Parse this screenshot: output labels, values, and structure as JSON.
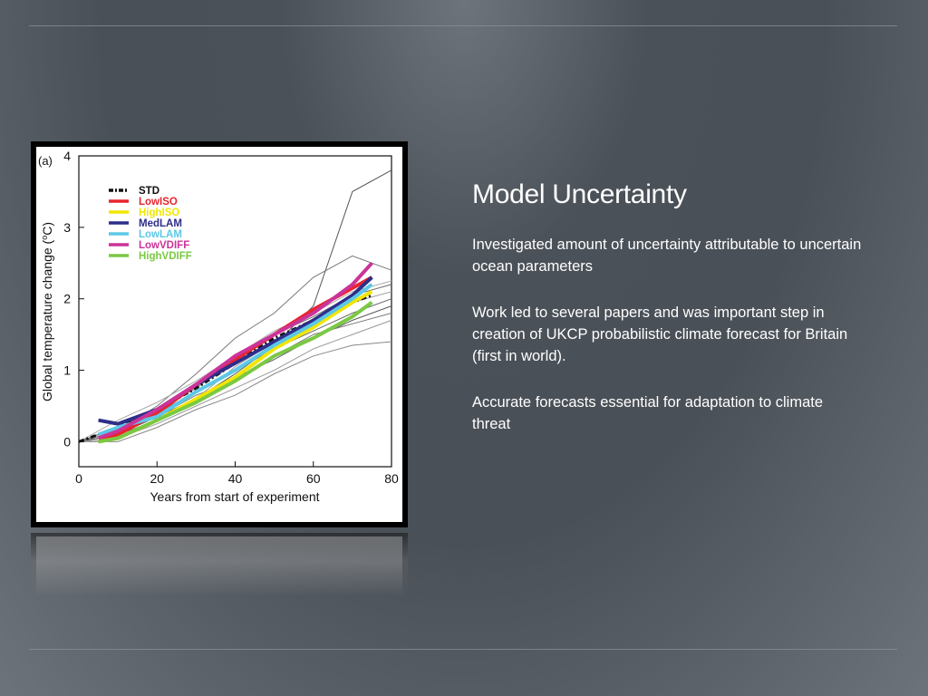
{
  "slide": {
    "title": "Model Uncertainty",
    "bullets": [
      "Investigated amount of uncertainty attributable to uncertain ocean parameters",
      "Work led to several papers and was important step in creation of UKCP probabilistic climate forecast for Britain (first in world).",
      "Accurate forecasts essential for adaptation to climate threat"
    ]
  },
  "chart_data": {
    "type": "line",
    "panel_label": "(a)",
    "title": "",
    "xlabel": "Years from start of experiment",
    "ylabel_text": "Global temperature change (",
    "ylabel_sup": "o",
    "ylabel_unit": "C)",
    "xlim": [
      0,
      80
    ],
    "ylim": [
      -0.35,
      4
    ],
    "x_ticks": [
      "0",
      "20",
      "40",
      "60",
      "80"
    ],
    "y_ticks": [
      "0",
      "1",
      "2",
      "3",
      "4"
    ],
    "grid": false,
    "legend_position": "top-left",
    "series": [
      {
        "name": "STD",
        "color": "#111111",
        "style": "dashdot",
        "x": [
          0,
          10,
          20,
          30,
          40,
          50,
          60,
          70,
          75
        ],
        "y": [
          0.0,
          0.2,
          0.45,
          0.75,
          1.1,
          1.45,
          1.7,
          1.95,
          2.05
        ]
      },
      {
        "name": "LowISO",
        "color": "#e8242d",
        "style": "solid",
        "x": [
          5,
          10,
          20,
          30,
          40,
          50,
          60,
          70,
          75
        ],
        "y": [
          0.0,
          0.1,
          0.4,
          0.8,
          1.15,
          1.5,
          1.85,
          2.15,
          2.3
        ]
      },
      {
        "name": "HighISO",
        "color": "#f2e600",
        "style": "solid",
        "x": [
          5,
          10,
          20,
          30,
          40,
          50,
          60,
          70,
          75
        ],
        "y": [
          0.0,
          0.05,
          0.3,
          0.6,
          0.9,
          1.3,
          1.6,
          1.95,
          2.1
        ]
      },
      {
        "name": "MedLAM",
        "color": "#2e2e8a",
        "style": "solid",
        "x": [
          5,
          10,
          20,
          30,
          40,
          50,
          60,
          70,
          75
        ],
        "y": [
          0.3,
          0.25,
          0.45,
          0.8,
          1.1,
          1.4,
          1.7,
          2.05,
          2.3
        ]
      },
      {
        "name": "LowLAM",
        "color": "#5cc8e6",
        "style": "solid",
        "x": [
          5,
          10,
          20,
          30,
          40,
          50,
          60,
          70,
          75
        ],
        "y": [
          0.1,
          0.2,
          0.35,
          0.7,
          1.0,
          1.35,
          1.65,
          2.0,
          2.2
        ]
      },
      {
        "name": "LowVDIFF",
        "color": "#cc3399",
        "style": "solid",
        "x": [
          5,
          10,
          20,
          30,
          40,
          50,
          60,
          70,
          75
        ],
        "y": [
          0.05,
          0.15,
          0.45,
          0.8,
          1.2,
          1.5,
          1.8,
          2.2,
          2.5
        ]
      },
      {
        "name": "HighVDIFF",
        "color": "#7ac943",
        "style": "solid",
        "x": [
          5,
          10,
          20,
          30,
          40,
          50,
          60,
          70,
          75
        ],
        "y": [
          0.0,
          0.05,
          0.3,
          0.55,
          0.85,
          1.2,
          1.45,
          1.75,
          1.95
        ]
      }
    ],
    "ensemble_members": [
      {
        "x": [
          0,
          10,
          20,
          30,
          40,
          50,
          60,
          70,
          80
        ],
        "y": [
          0.0,
          0.1,
          0.35,
          0.6,
          0.95,
          1.35,
          1.9,
          3.5,
          3.8
        ]
      },
      {
        "x": [
          0,
          10,
          20,
          30,
          40,
          50,
          60,
          70,
          80
        ],
        "y": [
          0.0,
          0.15,
          0.5,
          0.95,
          1.45,
          1.8,
          2.3,
          2.6,
          2.4
        ]
      },
      {
        "x": [
          0,
          10,
          20,
          30,
          40,
          50,
          60,
          70,
          80
        ],
        "y": [
          0.0,
          0.05,
          0.25,
          0.5,
          0.75,
          1.0,
          1.3,
          1.5,
          1.7
        ]
      },
      {
        "x": [
          0,
          10,
          20,
          30,
          40,
          50,
          60,
          70,
          80
        ],
        "y": [
          0.0,
          0.2,
          0.4,
          0.7,
          1.0,
          1.3,
          1.55,
          1.8,
          2.0
        ]
      },
      {
        "x": [
          0,
          10,
          20,
          30,
          40,
          50,
          60,
          70,
          80
        ],
        "y": [
          0.0,
          0.0,
          0.2,
          0.45,
          0.65,
          0.95,
          1.2,
          1.35,
          1.4
        ]
      },
      {
        "x": [
          0,
          10,
          20,
          30,
          40,
          50,
          60,
          70,
          80
        ],
        "y": [
          0.0,
          0.3,
          0.55,
          0.85,
          1.2,
          1.55,
          1.8,
          2.1,
          2.25
        ]
      },
      {
        "x": [
          0,
          10,
          20,
          30,
          40,
          50,
          60,
          70,
          80
        ],
        "y": [
          0.0,
          0.1,
          0.3,
          0.55,
          0.9,
          1.15,
          1.45,
          1.7,
          1.9
        ]
      },
      {
        "x": [
          0,
          10,
          20,
          30,
          40,
          50,
          60,
          70,
          80
        ],
        "y": [
          0.0,
          0.15,
          0.35,
          0.65,
          0.85,
          1.2,
          1.5,
          1.65,
          1.8
        ]
      },
      {
        "x": [
          0,
          10,
          20,
          30,
          40,
          50,
          60,
          70,
          80
        ],
        "y": [
          0.0,
          0.05,
          0.3,
          0.6,
          1.05,
          1.4,
          1.65,
          1.95,
          2.1
        ]
      },
      {
        "x": [
          0,
          10,
          20,
          30,
          40,
          50,
          60,
          70,
          80
        ],
        "y": [
          0.0,
          0.2,
          0.45,
          0.75,
          1.15,
          1.5,
          1.75,
          2.05,
          2.2
        ]
      }
    ]
  }
}
